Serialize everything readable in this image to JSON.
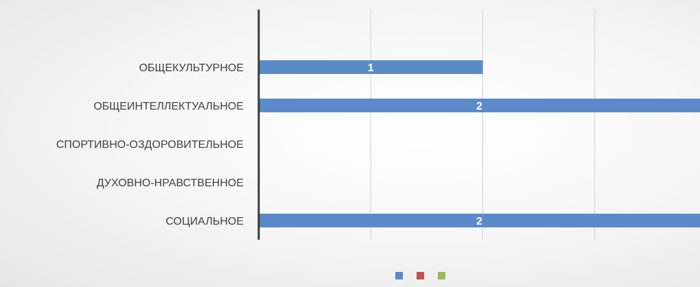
{
  "chart_data": {
    "type": "bar",
    "orientation": "horizontal",
    "categories": [
      "ОБЩЕКУЛЬТУРНОЕ",
      "ОБЩЕИНТЕЛЛЕКТУАЛЬНОЕ",
      "СПОРТИВНО-ОЗДОРОВИТЕЛЬНОЕ",
      "ДУХОВНО-НРАВСТВЕННОЕ",
      "СОЦИАЛЬНОЕ"
    ],
    "series": [
      {
        "values": [
          1,
          2,
          0,
          0,
          2
        ],
        "color": "#5b8ac9"
      },
      {
        "values": [
          0,
          0,
          0,
          0,
          0
        ],
        "color": "#c0504d"
      },
      {
        "values": [
          0,
          0,
          0,
          0,
          0
        ],
        "color": "#9bbb59"
      }
    ],
    "data_labels": [
      "1",
      "2",
      "0",
      "0",
      "2"
    ],
    "xlim": [
      0,
      2
    ],
    "grid": true,
    "legend_position": "bottom",
    "title": "",
    "xlabel": "",
    "ylabel": ""
  },
  "colors": {
    "axis": "#3a3a3a",
    "grid": "#d0d0d0",
    "label_text": "#404040",
    "data_label_text": "#ffffff"
  }
}
